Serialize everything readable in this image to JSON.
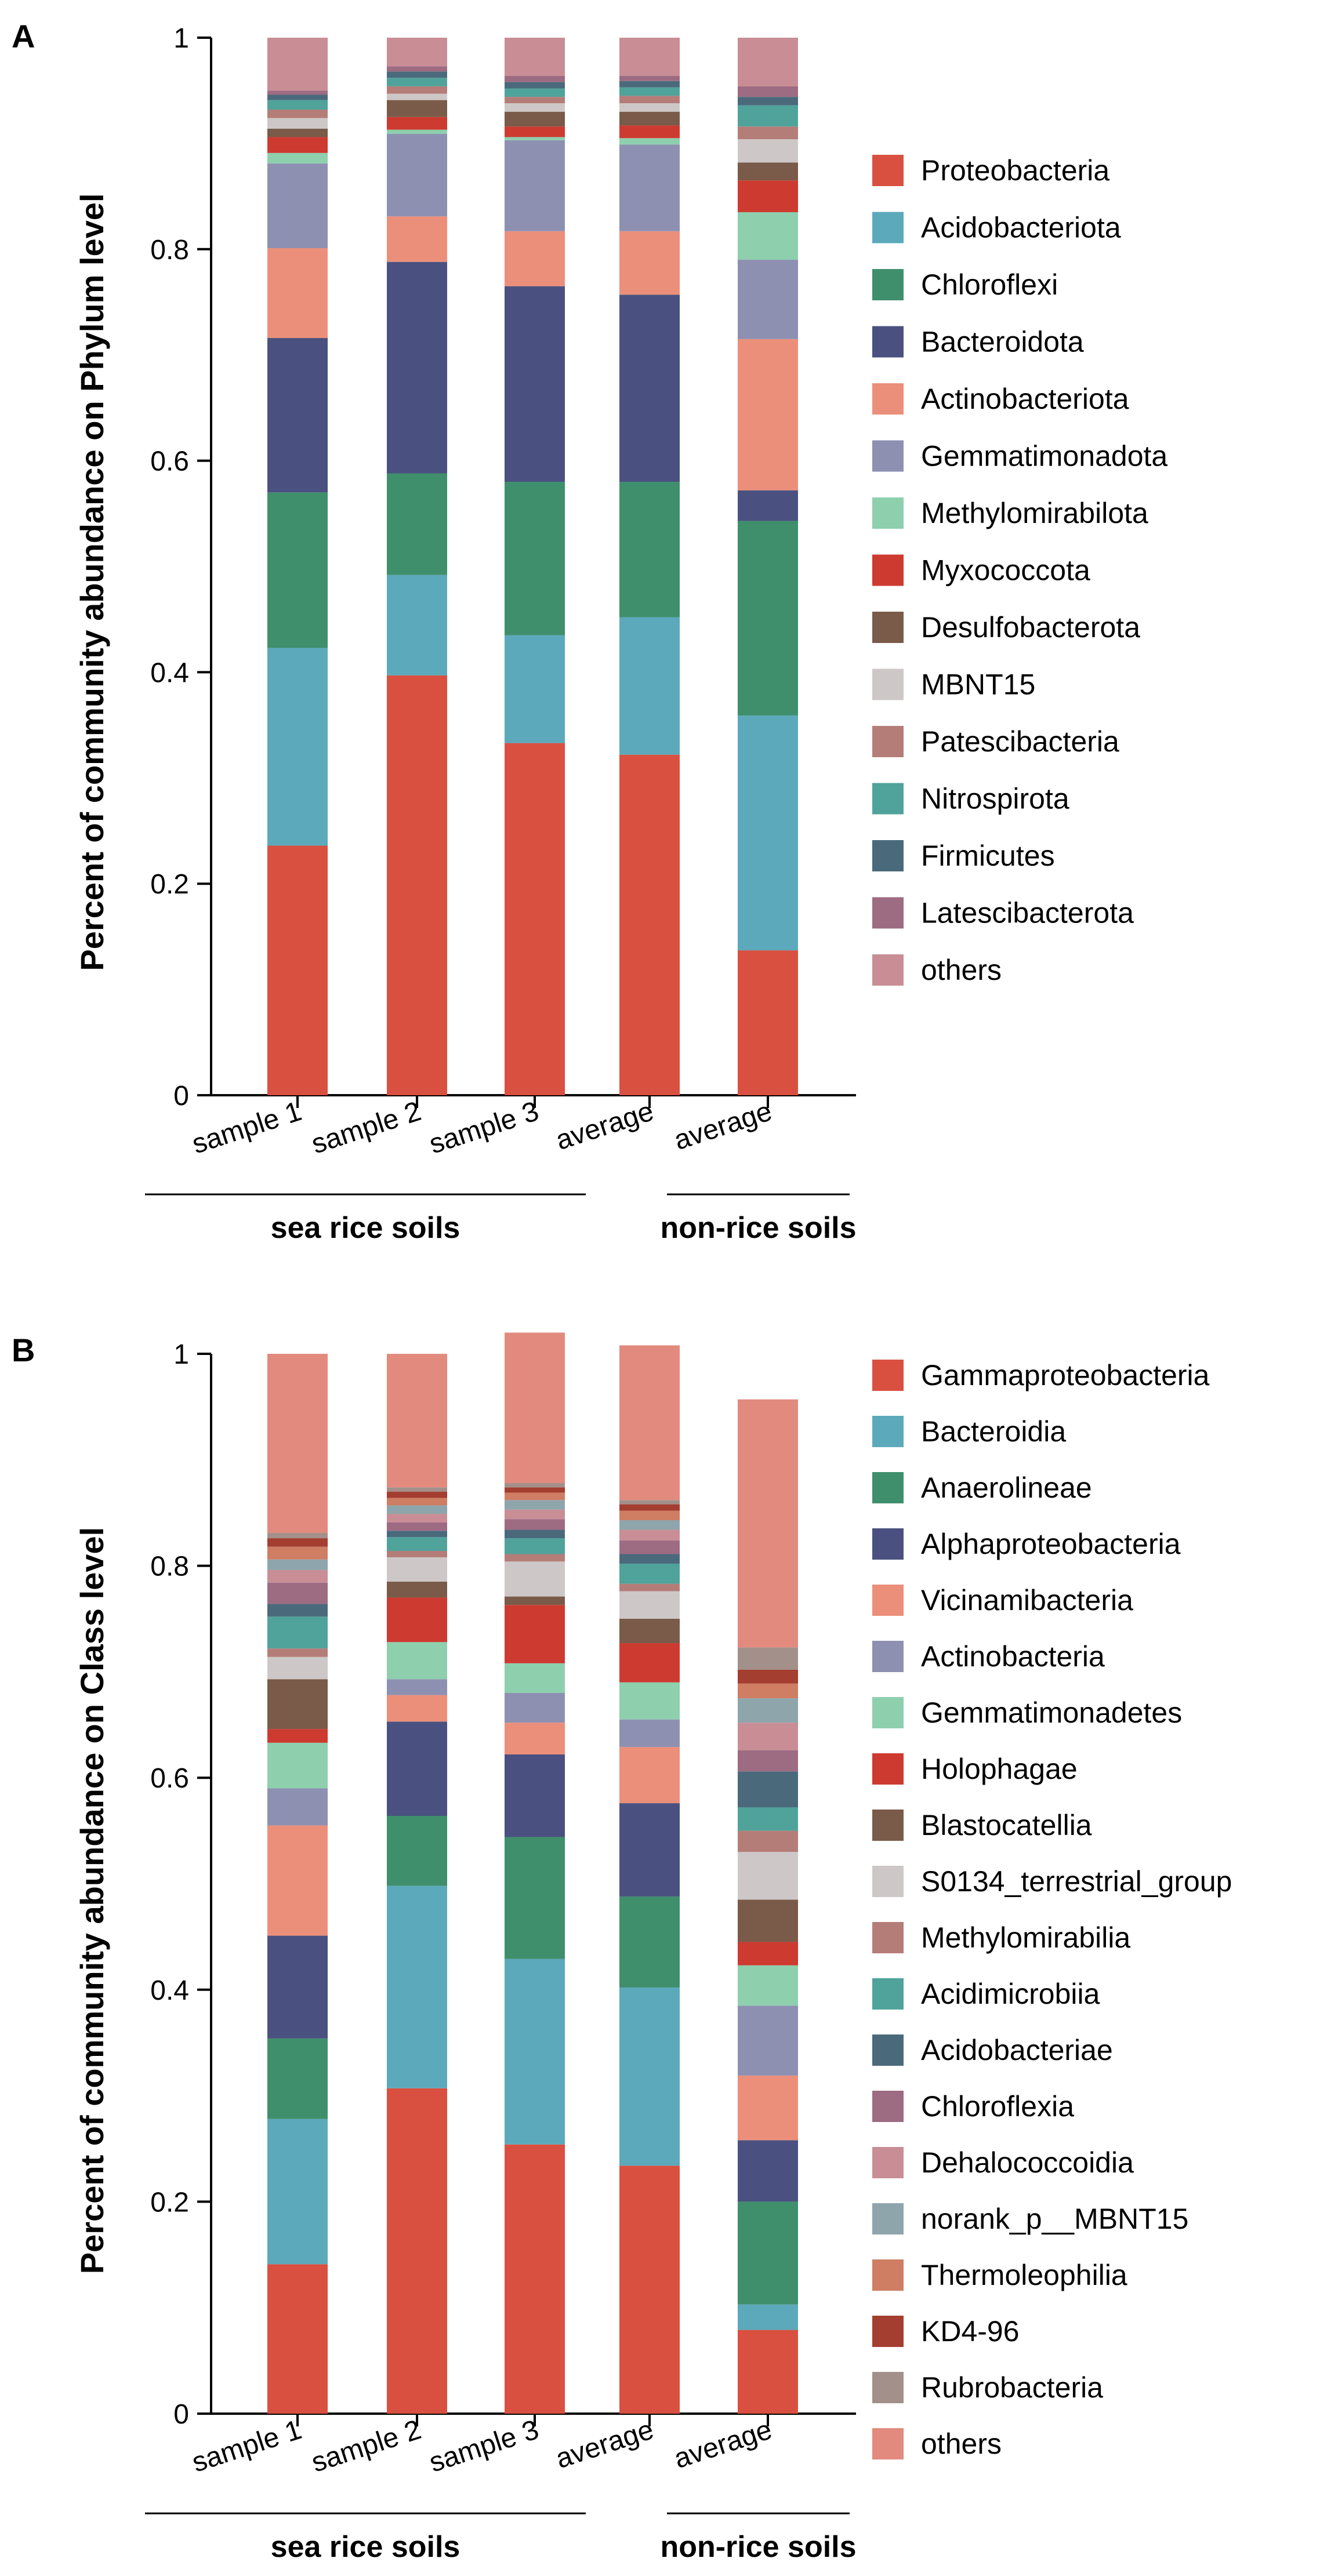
{
  "chart_data": [
    {
      "type": "bar",
      "stacked": true,
      "panel": "A",
      "title": "",
      "xlabel": "",
      "ylabel": "Percent of community abundance on Phylum level",
      "ylim": [
        0,
        1
      ],
      "yticks": [
        0,
        0.2,
        0.4,
        0.6,
        0.8,
        1
      ],
      "ytick_labels": [
        "0",
        "0.2",
        "0.4",
        "0.6",
        "0.8",
        "1"
      ],
      "categories": [
        "sample 1",
        "sample 2",
        "sample 3",
        "average",
        "average"
      ],
      "groups": [
        {
          "label": "sea rice soils",
          "categories": [
            0,
            1,
            2,
            3
          ]
        },
        {
          "label": "non-rice soils",
          "categories": [
            4
          ]
        }
      ],
      "series": [
        {
          "name": "Proteobacteria",
          "color": "#d95040",
          "values": [
            0.236,
            0.397,
            0.333,
            0.322,
            0.137
          ]
        },
        {
          "name": "Acidobacteriota",
          "color": "#5ca9bb",
          "values": [
            0.187,
            0.095,
            0.102,
            0.13,
            0.222
          ]
        },
        {
          "name": "Chloroflexi",
          "color": "#3f8f6d",
          "values": [
            0.147,
            0.096,
            0.145,
            0.128,
            0.184
          ]
        },
        {
          "name": "Bacteroidota",
          "color": "#4a5180",
          "values": [
            0.146,
            0.2,
            0.185,
            0.177,
            0.029
          ]
        },
        {
          "name": "Actinobacteriota",
          "color": "#ec8f7a",
          "values": [
            0.085,
            0.043,
            0.052,
            0.06,
            0.143
          ]
        },
        {
          "name": "Gemmatimonadota",
          "color": "#8e90b2",
          "values": [
            0.08,
            0.078,
            0.086,
            0.082,
            0.075
          ]
        },
        {
          "name": "Methylomirabilota",
          "color": "#8ecfae",
          "values": [
            0.01,
            0.004,
            0.003,
            0.006,
            0.045
          ]
        },
        {
          "name": "Myxococcota",
          "color": "#cd3a30",
          "values": [
            0.015,
            0.012,
            0.01,
            0.012,
            0.03
          ]
        },
        {
          "name": "Desulfobacterota",
          "color": "#7a5a48",
          "values": [
            0.008,
            0.016,
            0.014,
            0.013,
            0.017
          ]
        },
        {
          "name": "MBNT15",
          "color": "#cdc8c7",
          "values": [
            0.01,
            0.006,
            0.008,
            0.008,
            0.022
          ]
        },
        {
          "name": "Patescibacteria",
          "color": "#b57d78",
          "values": [
            0.008,
            0.007,
            0.006,
            0.007,
            0.012
          ]
        },
        {
          "name": "Nitrospirota",
          "color": "#50a39a",
          "values": [
            0.009,
            0.008,
            0.008,
            0.008,
            0.02
          ]
        },
        {
          "name": "Firmicutes",
          "color": "#4a6a7c",
          "values": [
            0.005,
            0.006,
            0.006,
            0.006,
            0.008
          ]
        },
        {
          "name": "Latescibacterota",
          "color": "#9d6b82",
          "values": [
            0.004,
            0.005,
            0.006,
            0.005,
            0.01
          ]
        },
        {
          "name": "others",
          "color": "#c98d95",
          "values": [
            0.05,
            0.027,
            0.036,
            0.036,
            0.046
          ]
        }
      ]
    },
    {
      "type": "bar",
      "stacked": true,
      "panel": "B",
      "title": "",
      "xlabel": "",
      "ylabel": "Percent of community abundance on Class level",
      "ylim": [
        0,
        1
      ],
      "yticks": [
        0,
        0.2,
        0.4,
        0.6,
        0.8,
        1
      ],
      "ytick_labels": [
        "0",
        "0.2",
        "0.4",
        "0.6",
        "0.8",
        "1"
      ],
      "categories": [
        "sample 1",
        "sample 2",
        "sample 3",
        "average",
        "average"
      ],
      "groups": [
        {
          "label": "sea rice soils",
          "categories": [
            0,
            1,
            2,
            3
          ]
        },
        {
          "label": "non-rice soils",
          "categories": [
            4
          ]
        }
      ],
      "series": [
        {
          "name": "Gammaproteobacteria",
          "color": "#d95040",
          "values": [
            0.141,
            0.307,
            0.254,
            0.234,
            0.079
          ]
        },
        {
          "name": "Bacteroidia",
          "color": "#5ca9bb",
          "values": [
            0.137,
            0.191,
            0.175,
            0.168,
            0.024
          ]
        },
        {
          "name": "Anaerolineae",
          "color": "#3f8f6d",
          "values": [
            0.076,
            0.066,
            0.115,
            0.086,
            0.097
          ]
        },
        {
          "name": "Alphaproteobacteria",
          "color": "#4a5180",
          "values": [
            0.097,
            0.089,
            0.078,
            0.088,
            0.058
          ]
        },
        {
          "name": "Vicinamibacteria",
          "color": "#ec8f7a",
          "values": [
            0.104,
            0.025,
            0.03,
            0.053,
            0.061
          ]
        },
        {
          "name": "Actinobacteria",
          "color": "#8e90b2",
          "values": [
            0.035,
            0.015,
            0.028,
            0.026,
            0.066
          ]
        },
        {
          "name": "Gemmatimonadetes",
          "color": "#8ecfae",
          "values": [
            0.043,
            0.035,
            0.028,
            0.035,
            0.038
          ]
        },
        {
          "name": "Holophagae",
          "color": "#cd3a30",
          "values": [
            0.013,
            0.042,
            0.055,
            0.037,
            0.022
          ]
        },
        {
          "name": "Blastocatellia",
          "color": "#7a5a48",
          "values": [
            0.047,
            0.015,
            0.008,
            0.023,
            0.04
          ]
        },
        {
          "name": "S0134_terrestrial_group",
          "color": "#cdc8c7",
          "values": [
            0.021,
            0.023,
            0.033,
            0.026,
            0.045
          ]
        },
        {
          "name": "Methylomirabilia",
          "color": "#b57d78",
          "values": [
            0.008,
            0.006,
            0.007,
            0.007,
            0.02
          ]
        },
        {
          "name": "Acidimicrobiia",
          "color": "#50a39a",
          "values": [
            0.03,
            0.013,
            0.015,
            0.019,
            0.022
          ]
        },
        {
          "name": "Acidobacteriae",
          "color": "#4a6a7c",
          "values": [
            0.012,
            0.006,
            0.008,
            0.009,
            0.034
          ]
        },
        {
          "name": "Chloroflexia",
          "color": "#9d6b82",
          "values": [
            0.02,
            0.008,
            0.01,
            0.013,
            0.02
          ]
        },
        {
          "name": "Dehalococcoidia",
          "color": "#c98d95",
          "values": [
            0.012,
            0.008,
            0.009,
            0.01,
            0.026
          ]
        },
        {
          "name": "norank_p__MBNT15",
          "color": "#8ea5ac",
          "values": [
            0.01,
            0.008,
            0.009,
            0.009,
            0.023
          ]
        },
        {
          "name": "Thermoleophilia",
          "color": "#cf7d63",
          "values": [
            0.012,
            0.007,
            0.007,
            0.009,
            0.014
          ]
        },
        {
          "name": "KD4-96",
          "color": "#a33e30",
          "values": [
            0.008,
            0.006,
            0.005,
            0.006,
            0.013
          ]
        },
        {
          "name": "Rubrobacteria",
          "color": "#a3908a",
          "values": [
            0.005,
            0.004,
            0.004,
            0.004,
            0.021
          ]
        },
        {
          "name": "others",
          "color": "#e28a7e",
          "values": [
            0.169,
            0.126,
            0.142,
            0.146,
            0.234
          ]
        }
      ]
    }
  ]
}
